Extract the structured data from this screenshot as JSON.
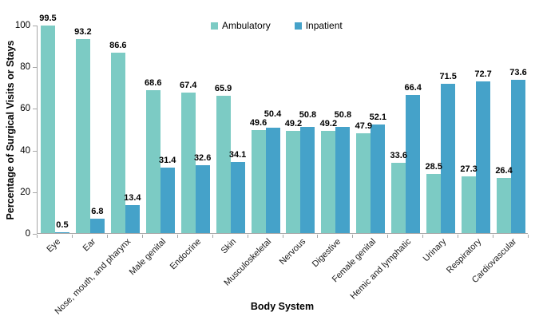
{
  "chart_data": {
    "type": "bar",
    "title": "",
    "xlabel": "Body System",
    "ylabel": "Percentage of Surgical Visits or Stays",
    "ylim": [
      0,
      100
    ],
    "yticks": [
      0,
      20,
      40,
      60,
      80,
      100
    ],
    "grid": false,
    "legend_position": "top-center",
    "categories": [
      "Eye",
      "Ear",
      "Nose, mouth, and pharynx",
      "Male genital",
      "Endocrine",
      "Skin",
      "Musculoskeletal",
      "Nervous",
      "Digestive",
      "Female genital",
      "Hemic and lymphatic",
      "Urinary",
      "Respiratory",
      "Cardiovascular"
    ],
    "series": [
      {
        "name": "Ambulatory",
        "color": "#7ccbc4",
        "values": [
          99.5,
          93.2,
          86.6,
          68.6,
          67.4,
          65.9,
          49.6,
          49.2,
          49.2,
          47.9,
          33.6,
          28.5,
          27.3,
          26.4
        ]
      },
      {
        "name": "Inpatient",
        "color": "#45a2c9",
        "values": [
          0.5,
          6.8,
          13.4,
          31.4,
          32.6,
          34.1,
          50.4,
          50.8,
          50.8,
          52.1,
          66.4,
          71.5,
          72.7,
          73.6
        ]
      }
    ],
    "axis_color": "#a6a6a6"
  }
}
